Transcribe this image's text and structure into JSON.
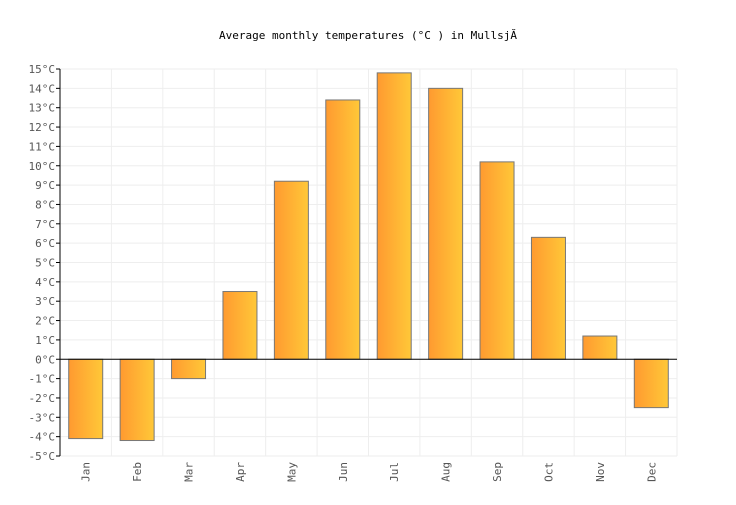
{
  "chart_data": {
    "type": "bar",
    "title": "Average monthly temperatures (°C ) in MullsjĂ",
    "xlabel": "",
    "ylabel": "",
    "categories": [
      "Jan",
      "Feb",
      "Mar",
      "Apr",
      "May",
      "Jun",
      "Jul",
      "Aug",
      "Sep",
      "Oct",
      "Nov",
      "Dec"
    ],
    "values": [
      -4.1,
      -4.2,
      -1.0,
      3.5,
      9.2,
      13.4,
      14.8,
      14.0,
      10.2,
      6.3,
      1.2,
      -2.5
    ],
    "ylim": [
      -5,
      15
    ],
    "ytick_unit": "°C",
    "grid": true,
    "bar_gradient": [
      "#ff9a30",
      "#ffc838"
    ],
    "bar_border": "#777777"
  }
}
